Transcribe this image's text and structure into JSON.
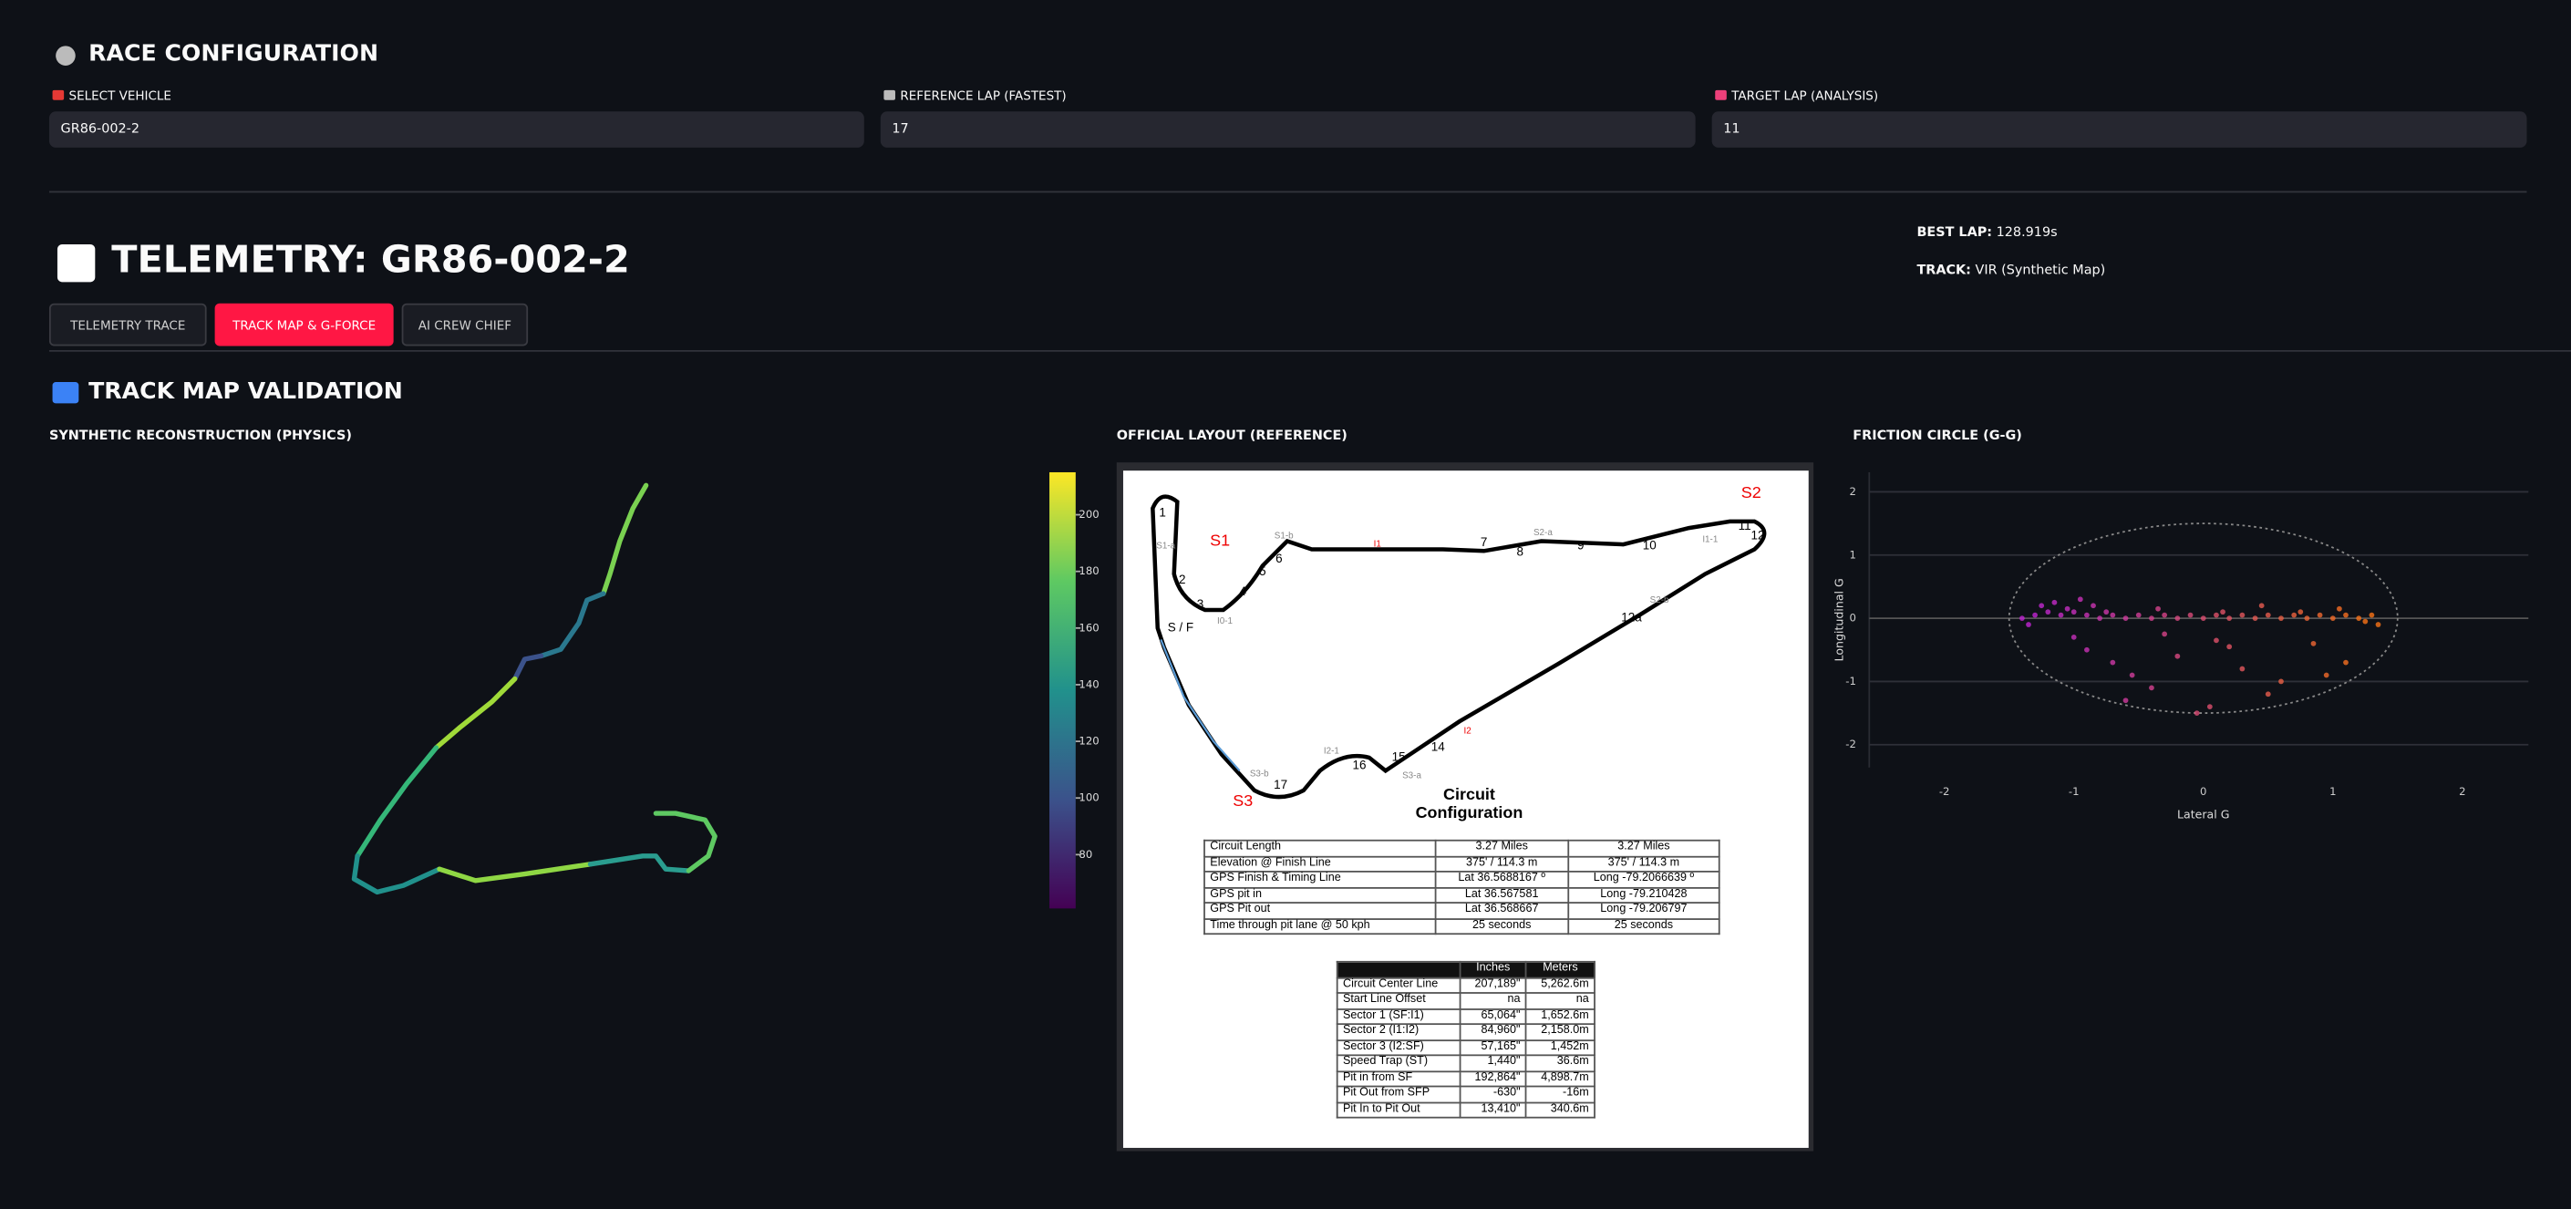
{
  "header": {
    "config_title": "RACE CONFIGURATION",
    "telemetry_title": "TELEMETRY: GR86-002-2",
    "best_lap_label": "BEST LAP:",
    "best_lap_value": "128.919s",
    "track_label": "TRACK:",
    "track_value": "VIR (Synthetic Map)"
  },
  "selects": [
    {
      "label": "SELECT VEHICLE",
      "value": "GR86-002-2"
    },
    {
      "label": "REFERENCE LAP (FASTEST)",
      "value": "17"
    },
    {
      "label": "TARGET LAP (ANALYSIS)",
      "value": "11"
    }
  ],
  "tabs": [
    {
      "label": "TELEMETRY TRACE",
      "active": false
    },
    {
      "label": "TRACK MAP & G-FORCE",
      "active": true
    },
    {
      "label": "AI CREW CHIEF",
      "active": false
    }
  ],
  "section_title": "TRACK MAP VALIDATION",
  "chart_data": [
    {
      "type": "track-map",
      "title": "SYNTHETIC RECONSTRUCTION (PHYSICS)",
      "clim": [
        61,
        215
      ],
      "cticks": [
        80,
        100,
        120,
        140,
        160,
        180,
        200
      ]
    },
    {
      "type": "scatter",
      "title": "FRICTION CIRCLE (G-G)",
      "x_label": "Lateral G",
      "y_label": "Longitudinal G",
      "xlim": [
        -2.58,
        2.51
      ],
      "ylim": [
        -2.36,
        2.31
      ],
      "xticks": [
        -2,
        -1,
        0,
        1,
        2
      ],
      "yticks": [
        -2,
        -1,
        0,
        1,
        2
      ],
      "grid": true,
      "friction_limit": 1.5,
      "colors": [
        "#c026d3",
        "#f97316"
      ],
      "x": [
        -1.4,
        -1.3,
        -1.2,
        -1.1,
        -1.0,
        -0.9,
        -0.8,
        -0.7,
        -0.6,
        -0.5,
        -0.4,
        -0.3,
        -0.2,
        -0.1,
        0,
        0.1,
        0.2,
        0.3,
        0.4,
        0.5,
        0.6,
        0.7,
        0.8,
        0.9,
        1.0,
        1.1,
        1.2,
        1.3,
        -1.25,
        -1.15,
        -1.05,
        -0.95,
        -0.85,
        -0.75,
        -0.35,
        0.15,
        0.45,
        0.75,
        1.05,
        1.25,
        -0.9,
        -0.7,
        -0.55,
        -0.4,
        -0.2,
        0.05,
        0.3,
        0.6,
        0.85,
        1.1,
        -1.0,
        -0.6,
        0.2,
        0.5,
        -0.3,
        0.1,
        0.95,
        -1.35,
        1.35,
        -0.05
      ],
      "values": [
        0,
        0.05,
        0.1,
        0.05,
        0.1,
        0.05,
        0,
        0.05,
        0,
        0.05,
        0,
        0.05,
        0,
        0.05,
        0,
        0.05,
        0,
        0.05,
        0,
        0.05,
        0,
        0.05,
        0,
        0.05,
        0,
        0.05,
        0,
        0.05,
        0.2,
        0.25,
        0.15,
        0.3,
        0.2,
        0.1,
        0.15,
        0.1,
        0.2,
        0.1,
        0.15,
        -0.05,
        -0.5,
        -0.7,
        -0.9,
        -1.1,
        -0.6,
        -1.4,
        -0.8,
        -1.0,
        -0.4,
        -0.7,
        -0.3,
        -1.3,
        -0.45,
        -1.2,
        -0.25,
        -0.35,
        -0.9,
        -0.1,
        -0.1,
        -1.5
      ]
    }
  ],
  "reference": {
    "title": "OFFICIAL LAYOUT (REFERENCE)",
    "turn_labels": [
      "1",
      "2",
      "3",
      "4",
      "5",
      "6",
      "7",
      "8",
      "9",
      "10",
      "11",
      "12",
      "12a",
      "14",
      "15",
      "16",
      "17",
      "S / F"
    ],
    "sector_labels": [
      "S1",
      "S2",
      "S3"
    ],
    "timing_labels": [
      "S1-a",
      "S1-b",
      "I1",
      "S2-a",
      "I1-1",
      "S2-b",
      "I2-1",
      "I2",
      "S3-a",
      "S3-b",
      "I0-1"
    ],
    "caption": [
      "Circuit",
      "Configuration"
    ],
    "table1": [
      [
        "Circuit Length",
        "3.27 Miles",
        "3.27 Miles"
      ],
      [
        "Elevation @ Finish Line",
        "375' / 114.3 m",
        "375' / 114.3 m"
      ],
      [
        "GPS Finish & Timing Line",
        "Lat  36.5688167 º",
        "Long  -79.2066639 º"
      ],
      [
        "GPS pit in",
        "Lat 36.567581",
        "Long -79.210428"
      ],
      [
        "GPS Pit out",
        "Lat 36.568667",
        "Long -79.206797"
      ],
      [
        "Time through pit lane @ 50 kph",
        "25 seconds",
        "25 seconds"
      ]
    ],
    "table2_header": [
      "Inches",
      "Meters"
    ],
    "table2": [
      [
        "Circuit Center Line",
        "207,189\"",
        "5,262.6m"
      ],
      [
        "Start Line Offset",
        "na",
        "na"
      ],
      [
        "Sector 1 (SF:I1)",
        "65,064\"",
        "1,652.6m"
      ],
      [
        "Sector 2 (I1:I2)",
        "84,960\"",
        "2,158.0m"
      ],
      [
        "Sector 3 (I2:SF)",
        "57,165\"",
        "1,452m"
      ],
      [
        "Speed Trap (ST)",
        "1,440\"",
        "36.6m"
      ],
      [
        "Pit in from SF",
        "192,864\"",
        "4,898.7m"
      ],
      [
        "Pit Out from SFP",
        "-630\"",
        "-16m"
      ],
      [
        "Pit In to Pit Out",
        "13,410\"",
        "340.6m"
      ]
    ]
  }
}
